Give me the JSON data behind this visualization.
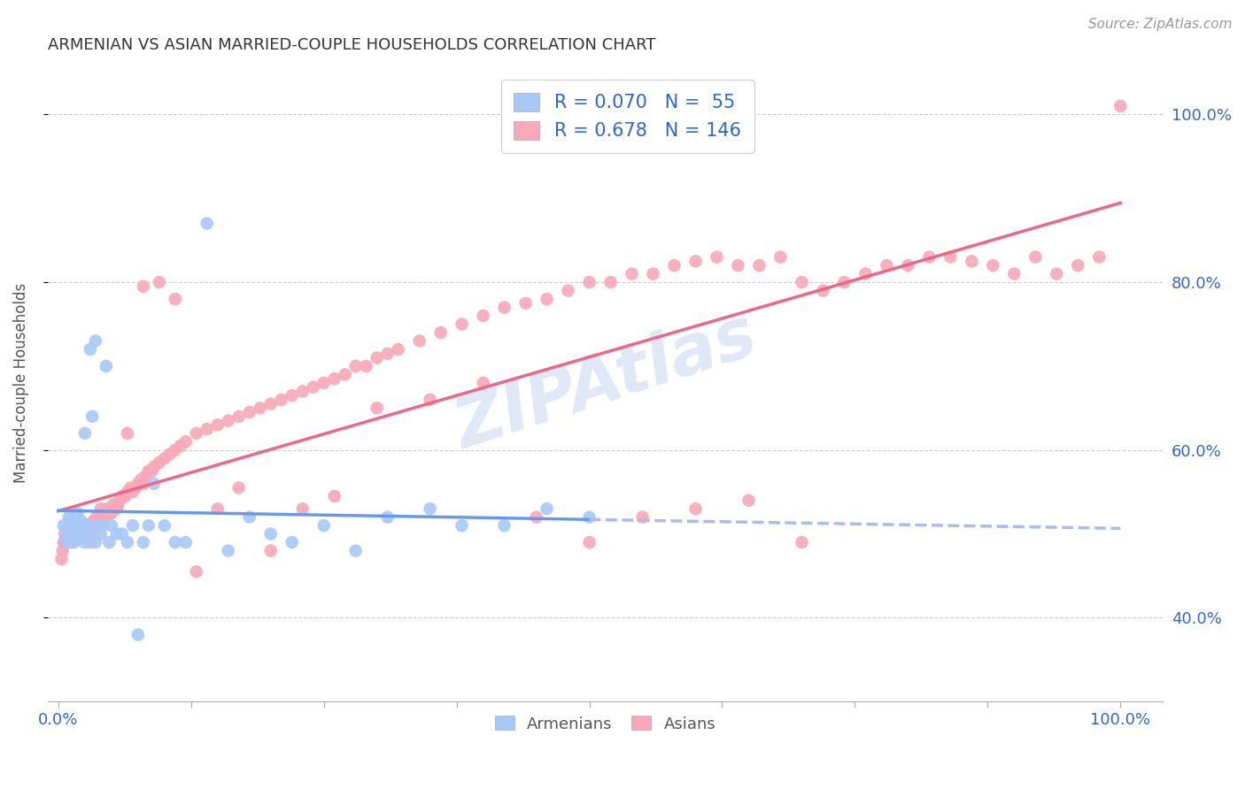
{
  "title": "ARMENIAN VS ASIAN MARRIED-COUPLE HOUSEHOLDS CORRELATION CHART",
  "source": "Source: ZipAtlas.com",
  "ylabel": "Married-couple Households",
  "armenian_R": 0.07,
  "armenian_N": 55,
  "asian_R": 0.678,
  "asian_N": 146,
  "background_color": "#ffffff",
  "grid_color": "#cccccc",
  "armenian_color": "#a8c8f8",
  "asian_color": "#f8a8b8",
  "trendline_armenian_color": "#6699ee",
  "trendline_asian_color": "#ee6688",
  "trendline_armenian_dashed_color": "#aabbee",
  "title_color": "#333333",
  "source_color": "#999999",
  "legend_text_color": "#3366cc",
  "watermark": "ZIPAtlas",
  "arm_scatter_x": [
    0.005,
    0.007,
    0.008,
    0.01,
    0.01,
    0.012,
    0.013,
    0.015,
    0.015,
    0.016,
    0.018,
    0.018,
    0.02,
    0.02,
    0.022,
    0.022,
    0.025,
    0.025,
    0.027,
    0.028,
    0.03,
    0.032,
    0.033,
    0.035,
    0.035,
    0.038,
    0.04,
    0.042,
    0.045,
    0.048,
    0.05,
    0.055,
    0.06,
    0.065,
    0.07,
    0.075,
    0.08,
    0.085,
    0.09,
    0.1,
    0.11,
    0.12,
    0.14,
    0.16,
    0.18,
    0.2,
    0.22,
    0.25,
    0.28,
    0.31,
    0.35,
    0.38,
    0.42,
    0.46,
    0.5
  ],
  "arm_scatter_y": [
    0.51,
    0.495,
    0.49,
    0.505,
    0.52,
    0.5,
    0.515,
    0.49,
    0.51,
    0.5,
    0.505,
    0.525,
    0.495,
    0.51,
    0.5,
    0.515,
    0.62,
    0.49,
    0.51,
    0.5,
    0.72,
    0.64,
    0.51,
    0.73,
    0.49,
    0.51,
    0.5,
    0.51,
    0.7,
    0.49,
    0.51,
    0.5,
    0.5,
    0.49,
    0.51,
    0.38,
    0.49,
    0.51,
    0.56,
    0.51,
    0.49,
    0.49,
    0.87,
    0.48,
    0.52,
    0.5,
    0.49,
    0.51,
    0.48,
    0.52,
    0.53,
    0.51,
    0.51,
    0.53,
    0.52
  ],
  "asi_scatter_x": [
    0.003,
    0.004,
    0.005,
    0.006,
    0.006,
    0.007,
    0.008,
    0.008,
    0.009,
    0.01,
    0.01,
    0.011,
    0.012,
    0.013,
    0.014,
    0.015,
    0.015,
    0.016,
    0.017,
    0.018,
    0.018,
    0.019,
    0.02,
    0.02,
    0.021,
    0.022,
    0.023,
    0.024,
    0.025,
    0.026,
    0.027,
    0.028,
    0.03,
    0.031,
    0.032,
    0.033,
    0.035,
    0.036,
    0.038,
    0.039,
    0.04,
    0.042,
    0.043,
    0.045,
    0.046,
    0.048,
    0.05,
    0.052,
    0.054,
    0.056,
    0.058,
    0.06,
    0.063,
    0.065,
    0.068,
    0.07,
    0.073,
    0.075,
    0.078,
    0.08,
    0.083,
    0.085,
    0.088,
    0.09,
    0.095,
    0.1,
    0.105,
    0.11,
    0.115,
    0.12,
    0.13,
    0.14,
    0.15,
    0.16,
    0.17,
    0.18,
    0.19,
    0.2,
    0.21,
    0.22,
    0.23,
    0.24,
    0.25,
    0.26,
    0.27,
    0.28,
    0.29,
    0.3,
    0.31,
    0.32,
    0.34,
    0.36,
    0.38,
    0.4,
    0.42,
    0.44,
    0.46,
    0.48,
    0.5,
    0.52,
    0.54,
    0.56,
    0.58,
    0.6,
    0.62,
    0.64,
    0.66,
    0.68,
    0.7,
    0.72,
    0.74,
    0.76,
    0.78,
    0.8,
    0.82,
    0.84,
    0.86,
    0.88,
    0.9,
    0.92,
    0.94,
    0.96,
    0.98,
    1.0,
    0.03,
    0.04,
    0.055,
    0.065,
    0.08,
    0.095,
    0.11,
    0.13,
    0.15,
    0.17,
    0.2,
    0.23,
    0.26,
    0.3,
    0.35,
    0.4,
    0.45,
    0.5,
    0.55,
    0.6,
    0.65,
    0.7
  ],
  "asi_scatter_y": [
    0.47,
    0.48,
    0.49,
    0.49,
    0.5,
    0.49,
    0.495,
    0.505,
    0.49,
    0.5,
    0.495,
    0.505,
    0.49,
    0.5,
    0.505,
    0.495,
    0.51,
    0.5,
    0.505,
    0.495,
    0.51,
    0.5,
    0.495,
    0.505,
    0.5,
    0.51,
    0.5,
    0.505,
    0.495,
    0.51,
    0.5,
    0.51,
    0.5,
    0.51,
    0.505,
    0.515,
    0.51,
    0.52,
    0.515,
    0.515,
    0.52,
    0.515,
    0.525,
    0.52,
    0.53,
    0.525,
    0.525,
    0.535,
    0.53,
    0.535,
    0.54,
    0.545,
    0.545,
    0.55,
    0.555,
    0.55,
    0.555,
    0.56,
    0.565,
    0.56,
    0.57,
    0.575,
    0.575,
    0.58,
    0.585,
    0.59,
    0.595,
    0.6,
    0.605,
    0.61,
    0.62,
    0.625,
    0.63,
    0.635,
    0.64,
    0.645,
    0.65,
    0.655,
    0.66,
    0.665,
    0.67,
    0.675,
    0.68,
    0.685,
    0.69,
    0.7,
    0.7,
    0.71,
    0.715,
    0.72,
    0.73,
    0.74,
    0.75,
    0.76,
    0.77,
    0.775,
    0.78,
    0.79,
    0.8,
    0.8,
    0.81,
    0.81,
    0.82,
    0.825,
    0.83,
    0.82,
    0.82,
    0.83,
    0.8,
    0.79,
    0.8,
    0.81,
    0.82,
    0.82,
    0.83,
    0.83,
    0.825,
    0.82,
    0.81,
    0.83,
    0.81,
    0.82,
    0.83,
    1.01,
    0.49,
    0.53,
    0.53,
    0.62,
    0.795,
    0.8,
    0.78,
    0.455,
    0.53,
    0.555,
    0.48,
    0.53,
    0.545,
    0.65,
    0.66,
    0.68,
    0.52,
    0.49,
    0.52,
    0.53,
    0.54,
    0.49
  ]
}
